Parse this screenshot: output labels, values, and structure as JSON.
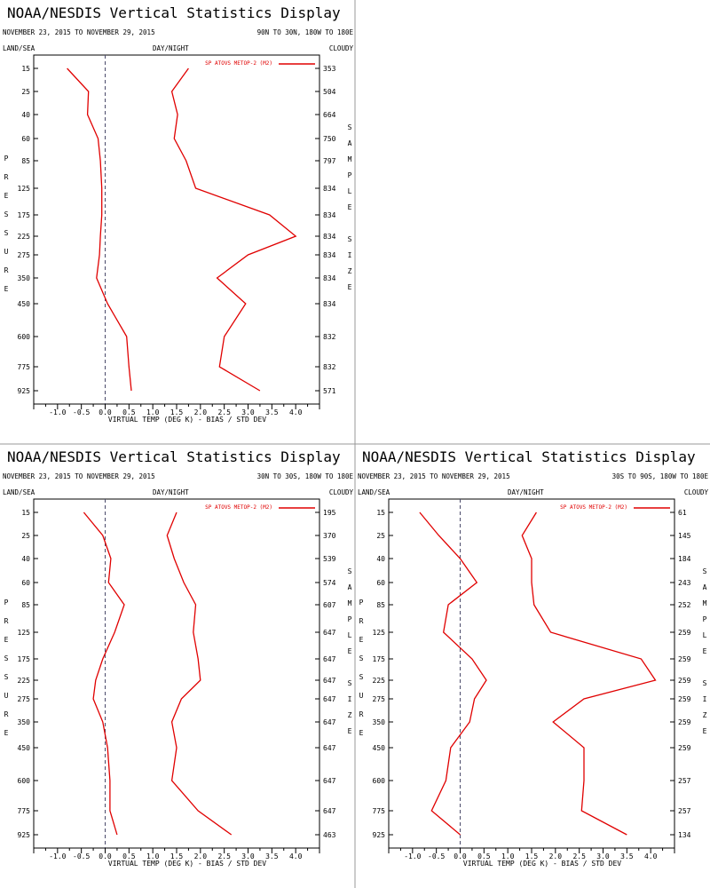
{
  "chart_data": [
    {
      "type": "line",
      "title": "NOAA/NESDIS Vertical Statistics Display",
      "date_range": "NOVEMBER 23, 2015 TO NOVEMBER 29, 2015",
      "region": "90N TO 30N, 180W TO 180E",
      "header_left": "LAND/SEA",
      "header_mid": "DAY/NIGHT",
      "header_right": "CLOUDY",
      "xlabel": "VIRTUAL TEMP (DEG K) - BIAS / STD DEV",
      "ylabel": "PRESSURE",
      "y2label": "SAMPLE SIZE",
      "xlim": [
        -1.5,
        4.5
      ],
      "xticks": [
        "-1.0",
        "-0.5",
        "0.0",
        "0.5",
        "1.0",
        "1.5",
        "2.0",
        "2.5",
        "3.0",
        "3.5",
        "4.0"
      ],
      "pressure_levels": [
        "15",
        "25",
        "40",
        "60",
        "85",
        "125",
        "175",
        "225",
        "275",
        "350",
        "450",
        "600",
        "775",
        "925"
      ],
      "sample_sizes": [
        "353",
        "504",
        "664",
        "750",
        "797",
        "834",
        "834",
        "834",
        "834",
        "834",
        "834",
        "832",
        "832",
        "571"
      ],
      "legend": "SP ATOVS METOP-2 (M2)",
      "series": [
        {
          "name": "BIAS",
          "values": [
            -0.8,
            -0.35,
            -0.37,
            -0.15,
            -0.1,
            -0.07,
            -0.07,
            -0.1,
            -0.12,
            -0.18,
            0.05,
            0.45,
            0.5,
            0.55
          ]
        },
        {
          "name": "STD DEV",
          "values": [
            1.75,
            1.4,
            1.52,
            1.45,
            1.7,
            1.9,
            3.45,
            4.0,
            3.0,
            2.35,
            2.95,
            2.5,
            2.4,
            3.25
          ]
        }
      ]
    },
    {
      "type": "line",
      "title": "NOAA/NESDIS Vertical Statistics Display",
      "date_range": "NOVEMBER 23, 2015 TO NOVEMBER 29, 2015",
      "region": "30N TO 30S, 180W TO 180E",
      "header_left": "LAND/SEA",
      "header_mid": "DAY/NIGHT",
      "header_right": "CLOUDY",
      "xlabel": "VIRTUAL TEMP (DEG K) - BIAS / STD DEV",
      "ylabel": "PRESSURE",
      "y2label": "SAMPLE SIZE",
      "xlim": [
        -1.5,
        4.5
      ],
      "xticks": [
        "-1.0",
        "-0.5",
        "0.0",
        "0.5",
        "1.0",
        "1.5",
        "2.0",
        "2.5",
        "3.0",
        "3.5",
        "4.0"
      ],
      "pressure_levels": [
        "15",
        "25",
        "40",
        "60",
        "85",
        "125",
        "175",
        "225",
        "275",
        "350",
        "450",
        "600",
        "775",
        "925"
      ],
      "sample_sizes": [
        "195",
        "370",
        "539",
        "574",
        "607",
        "647",
        "647",
        "647",
        "647",
        "647",
        "647",
        "647",
        "647",
        "463"
      ],
      "legend": "SP ATOVS METOP-2 (M2)",
      "series": [
        {
          "name": "BIAS",
          "values": [
            -0.45,
            -0.05,
            0.12,
            0.07,
            0.4,
            0.2,
            -0.05,
            -0.2,
            -0.25,
            -0.05,
            0.05,
            0.1,
            0.1,
            0.25
          ]
        },
        {
          "name": "STD DEV",
          "values": [
            1.5,
            1.3,
            1.45,
            1.65,
            1.9,
            1.85,
            1.95,
            2.0,
            1.6,
            1.4,
            1.5,
            1.4,
            1.95,
            2.65
          ]
        }
      ]
    },
    {
      "type": "line",
      "title": "NOAA/NESDIS Vertical Statistics Display",
      "date_range": "NOVEMBER 23, 2015 TO NOVEMBER 29, 2015",
      "region": "30S TO 90S, 180W TO 180E",
      "header_left": "LAND/SEA",
      "header_mid": "DAY/NIGHT",
      "header_right": "CLOUDY",
      "xlabel": "VIRTUAL TEMP (DEG K) - BIAS / STD DEV",
      "ylabel": "PRESSURE",
      "y2label": "SAMPLE SIZE",
      "xlim": [
        -1.5,
        4.5
      ],
      "xticks": [
        "-1.0",
        "-0.5",
        "0.0",
        "0.5",
        "1.0",
        "1.5",
        "2.0",
        "2.5",
        "3.0",
        "3.5",
        "4.0"
      ],
      "pressure_levels": [
        "15",
        "25",
        "40",
        "60",
        "85",
        "125",
        "175",
        "225",
        "275",
        "350",
        "450",
        "600",
        "775",
        "925"
      ],
      "sample_sizes": [
        "61",
        "145",
        "184",
        "243",
        "252",
        "259",
        "259",
        "259",
        "259",
        "259",
        "259",
        "257",
        "257",
        "134"
      ],
      "legend": "SP ATOVS METOP-2 (M2)",
      "series": [
        {
          "name": "BIAS",
          "values": [
            -0.85,
            -0.45,
            0.0,
            0.35,
            -0.25,
            -0.35,
            0.25,
            0.55,
            0.3,
            0.2,
            -0.2,
            -0.3,
            -0.6,
            0.0
          ]
        },
        {
          "name": "STD DEV",
          "values": [
            1.6,
            1.3,
            1.5,
            1.5,
            1.55,
            1.9,
            3.8,
            4.1,
            2.6,
            1.95,
            2.6,
            2.6,
            2.55,
            3.5
          ]
        }
      ]
    }
  ],
  "colors": {
    "series": "#e00000",
    "zero_line": "#4a4a6a",
    "axes": "#000000",
    "divider": "#999999"
  }
}
